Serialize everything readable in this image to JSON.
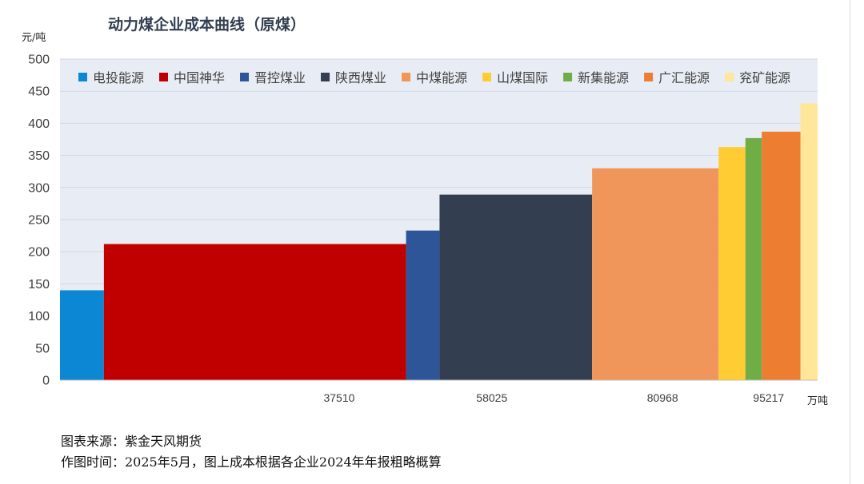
{
  "chart_data": {
    "type": "bar",
    "title": "动力煤企业成本曲线（原煤）",
    "ylabel": "元/吨",
    "xlabel": "万吨",
    "ylim": [
      0,
      500
    ],
    "yticks": [
      0,
      50,
      100,
      150,
      200,
      250,
      300,
      350,
      400,
      450,
      500
    ],
    "xlim": [
      0,
      101800
    ],
    "xticks": [
      37510,
      58025,
      80968,
      95217
    ],
    "grid": true,
    "legend_position": "top",
    "series": [
      {
        "name": "电投能源",
        "x_start": 0,
        "x_end": 5900,
        "value": 140,
        "color": "#0b87d3"
      },
      {
        "name": "中国神华",
        "x_start": 5900,
        "x_end": 46500,
        "value": 212,
        "color": "#c00000"
      },
      {
        "name": "晋控煤业",
        "x_start": 46500,
        "x_end": 51000,
        "value": 233,
        "color": "#2e5597"
      },
      {
        "name": "陕西煤业",
        "x_start": 51000,
        "x_end": 71500,
        "value": 289,
        "color": "#333f50"
      },
      {
        "name": "中煤能源",
        "x_start": 71500,
        "x_end": 88500,
        "value": 330,
        "color": "#f0965a"
      },
      {
        "name": "山煤国际",
        "x_start": 88500,
        "x_end": 92100,
        "value": 363,
        "color": "#ffcc33"
      },
      {
        "name": "新集能源",
        "x_start": 92100,
        "x_end": 94300,
        "value": 377,
        "color": "#70ad47"
      },
      {
        "name": "广汇能源",
        "x_start": 94300,
        "x_end": 99500,
        "value": 387,
        "color": "#ed7d31"
      },
      {
        "name": "兖矿能源",
        "x_start": 99500,
        "x_end": 117500,
        "value": 431,
        "color": "#ffe699"
      }
    ]
  },
  "footer": {
    "source": "图表来源：紫金天风期货",
    "note": "作图时间：2025年5月，图上成本根据各企业2024年年报粗略概算"
  }
}
